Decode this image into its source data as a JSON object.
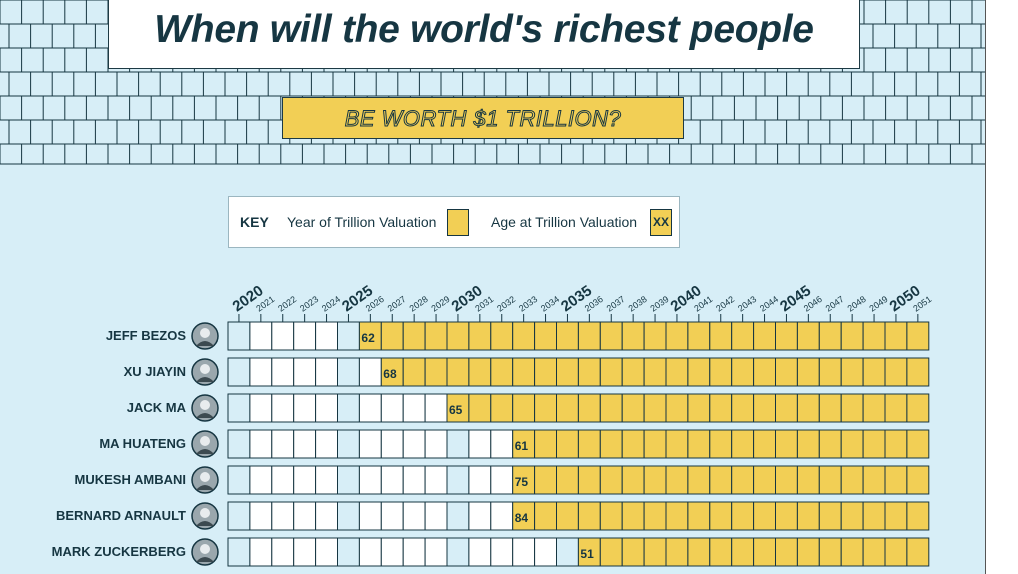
{
  "header": {
    "title": "When will the world's richest people",
    "subtitle": "BE WORTH $1 TRILLION?"
  },
  "key": {
    "label": "KEY",
    "year_text": "Year of Trillion Valuation",
    "age_text": "Age at Trillion Valuation",
    "age_swatch": "XX"
  },
  "colors": {
    "highlight": "#f2cf55",
    "background": "#d7eef7",
    "text": "#163642"
  },
  "chart_data": {
    "type": "table",
    "x": [
      2020,
      2021,
      2022,
      2023,
      2024,
      2025,
      2026,
      2027,
      2028,
      2029,
      2030,
      2031,
      2032,
      2033,
      2034,
      2035,
      2036,
      2037,
      2038,
      2039,
      2040,
      2041,
      2042,
      2043,
      2044,
      2045,
      2046,
      2047,
      2048,
      2049,
      2050,
      2051
    ],
    "major_years": [
      2020,
      2025,
      2030,
      2035,
      2040,
      2045,
      2050
    ],
    "rows": [
      {
        "name": "JEFF BEZOS",
        "year": 2026,
        "age": "62"
      },
      {
        "name": "XU JIAYIN",
        "year": 2027,
        "age": "68"
      },
      {
        "name": "JACK MA",
        "year": 2030,
        "age": "65"
      },
      {
        "name": "MA HUATENG",
        "year": 2033,
        "age": "61"
      },
      {
        "name": "MUKESH AMBANI",
        "year": 2033,
        "age": "75"
      },
      {
        "name": "BERNARD ARNAULT",
        "year": 2033,
        "age": "84"
      },
      {
        "name": "MARK ZUCKERBERG",
        "year": 2036,
        "age": "51"
      }
    ]
  }
}
